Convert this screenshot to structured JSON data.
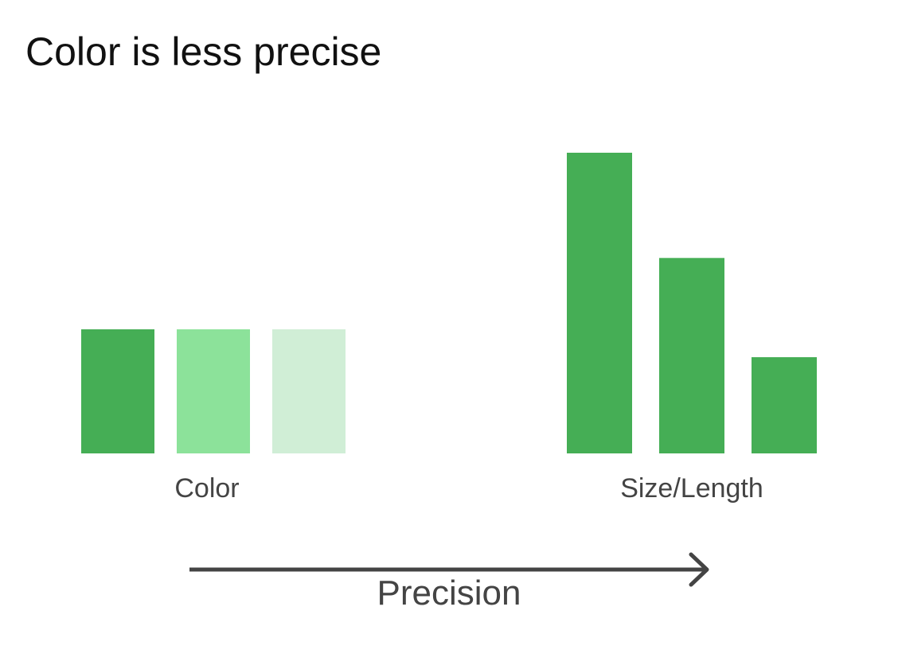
{
  "title": "Color is less precise",
  "color_group": {
    "label": "Color",
    "swatches": [
      {
        "color": "#45ae55"
      },
      {
        "color": "#8ce29a"
      },
      {
        "color": "#d0eed6"
      }
    ]
  },
  "size_group": {
    "label": "Size/Length",
    "color": "#45ae55",
    "relative_heights": [
      1.0,
      0.65,
      0.32
    ]
  },
  "axis": {
    "label": "Precision",
    "color": "#444444"
  }
}
